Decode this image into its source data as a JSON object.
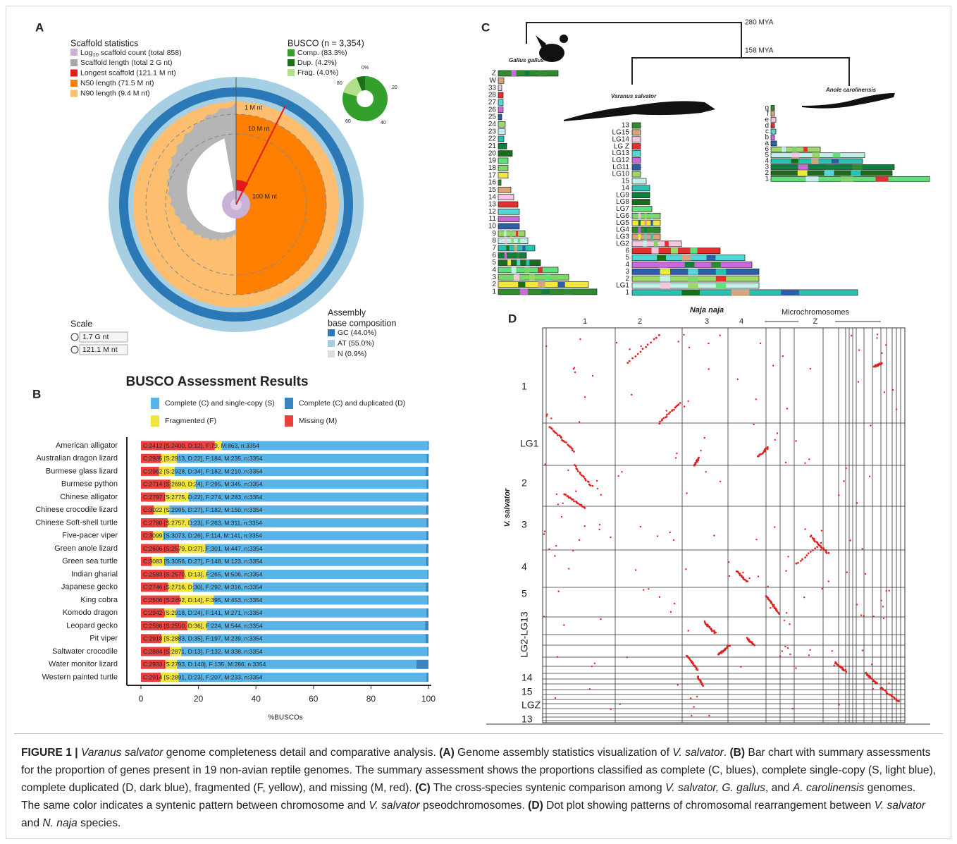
{
  "panel_labels": [
    "A",
    "B",
    "C",
    "D"
  ],
  "panel_a": {
    "scaffold_title": "Scaffold statistics",
    "log_label": [
      "Log",
      "10",
      " scaffold count (total 858)"
    ],
    "scaffold_items": [
      "Scaffold length (total 2 G nt)",
      "Longest scaffold (121.1 M nt)",
      "N50 length (71.5 M nt)",
      "N90 length (9.4 M nt)"
    ],
    "busco_title": "BUSCO (n = 3,354)",
    "busco_items": [
      "Comp. (83.3%)",
      "Dup. (4.2%)",
      "Frag. (4.0%)"
    ],
    "busco_ticks": [
      "0%",
      "20",
      "40",
      "60",
      "80"
    ],
    "ring_labels": [
      "1 M nt",
      "10 M nt",
      "100 M nt"
    ],
    "scale_title": "Scale",
    "scale_items": [
      "1.7 G nt",
      "121.1 M nt"
    ],
    "composition_title": [
      "Assembly",
      "base composition"
    ],
    "composition_items": [
      "GC (44.0%)",
      "AT (55.0%)",
      "N (0.9%)"
    ]
  },
  "chart_data": {
    "type": "stacked_barh",
    "title": "BUSCO Assessment Results",
    "x_label": "%BUSCOs",
    "categories": [
      "American alligator",
      "Australian dragon lizard",
      "Burmese glass lizard",
      "Burmese python",
      "Chinese alligator",
      "Chinese crocodile lizard",
      "Chinese Soft-shell turtle",
      "Five-pacer viper",
      "Green anole lizard",
      "Green sea turtle",
      "Indian gharial",
      "Japanese gecko",
      "King cobra",
      "Komodo dragon",
      "Leopard gecko",
      "Pit viper",
      "Saltwater crocodile",
      "Water monitor lizard",
      "Western painted turtle"
    ],
    "series": [
      {
        "name": "Missing (M)",
        "color": "#e8413f",
        "values": [
          25.7,
          7.0,
          6.3,
          10.3,
          8.4,
          4.5,
          9.3,
          4.2,
          13.3,
          3.7,
          15.1,
          9.4,
          13.5,
          8.1,
          16.2,
          7.1,
          10.1,
          8.5,
          6.9
        ]
      },
      {
        "name": "Fragmented (F)",
        "color": "#f1e43f",
        "values": [
          2.4,
          5.5,
          5.4,
          8.8,
          8.2,
          5.4,
          7.8,
          3.4,
          9.0,
          4.4,
          7.9,
          8.7,
          11.8,
          4.2,
          6.7,
          5.9,
          3.9,
          4.0,
          6.2
        ]
      },
      {
        "name": "Complete (C) and single-copy (S)",
        "color": "#58b4e6",
        "values": [
          71.6,
          86.9,
          87.3,
          80.2,
          82.7,
          89.3,
          82.2,
          91.6,
          76.9,
          91.1,
          76.6,
          81.0,
          74.3,
          87.0,
          76.0,
          86.0,
          85.6,
          83.3,
          86.2
        ]
      },
      {
        "name": "Complete (C) and duplicated (D)",
        "color": "#3a84bf",
        "values": [
          0.4,
          0.7,
          1.0,
          0.7,
          0.7,
          0.8,
          0.7,
          0.8,
          0.8,
          0.8,
          0.4,
          0.9,
          0.4,
          0.7,
          1.1,
          1.0,
          0.4,
          4.2,
          0.7
        ]
      }
    ],
    "bar_labels": [
      "C:2412 [S:2400, D:12], F:79, M:863, n:3354",
      "C:2935 [S:2913, D:22], F:184, M:235, n:3354",
      "C:2962 [S:2928, D:34], F:182, M:210, n:3354",
      "C:2714 [S:2690, D:24], F:295, M:345, n:3354",
      "C:2797 [S:2775, D:22], F:274, M:283, n:3354",
      "C:3022 [S:2995, D:27], F:182, M:150, n:3354",
      "C:2780 [S:2757, D:23], F:263, M:311, n:3354",
      "C:3099 [S:3073, D:26], F:114, M:141, n:3354",
      "C:2606 [S:2579, D:27], F:301, M:447, n:3354",
      "C:3083 [S:3056, D:27], F:148, M:123, n:3354",
      "C:2583 [S:2570, D:13], F:265, M:506, n:3354",
      "C:2746 [S:2716, D:30], F:292, M:316, n:3354",
      "C:2506 [S:2492, D:14], F:395, M:453, n:3354",
      "C:2942 [S:2918, D:24], F:141, M:271, n:3354",
      "C:2586 [S:2550, D:36], F:224, M:544, n:3354",
      "C:2918 [S:2883, D:35], F:197, M:239, n:3354",
      "C:2884 [S:2871, D:13], F:132, M:338, n:3354",
      "C:2933 [S:2793, D:140], F:135, M:286, n:3354",
      "C:2914 [S:2891, D:23], F:207, M:233, n:3354"
    ],
    "xlim": [
      0,
      100
    ],
    "xticks": [
      0,
      20,
      40,
      60,
      80,
      100
    ]
  },
  "panel_c": {
    "ages": [
      "280 MYA",
      "158 MYA"
    ],
    "species": [
      "Gallus gallus",
      "Varanus salvator",
      "Anole carolinensis"
    ],
    "gallus_labels": [
      "Z",
      "W",
      "33",
      "28",
      "27",
      "26",
      "25",
      "24",
      "23",
      "22",
      "21",
      "20",
      "19",
      "18",
      "17",
      "16",
      "15",
      "14",
      "13",
      "12",
      "11",
      "10",
      "9",
      "8",
      "7",
      "6",
      "5",
      "4",
      "3",
      "2",
      "1"
    ],
    "varanus_labels": [
      "13",
      "LG15",
      "LG14",
      "LG Z",
      "LG13",
      "LG12",
      "LG11",
      "LG10",
      "15",
      "14",
      "LG9",
      "LG8",
      "LG7",
      "LG6",
      "LG5",
      "LG4",
      "LG3",
      "LG2",
      "6",
      "5",
      "4",
      "3",
      "2",
      "LG1",
      "1"
    ],
    "anole_labels": [
      "g",
      "f",
      "e",
      "d",
      "c",
      "b",
      "a",
      "6",
      "5",
      "4",
      "3",
      "2",
      "1"
    ]
  },
  "panel_d": {
    "x_title": "Naja naja",
    "micro_label": "Microchromosomes",
    "x_labels": [
      "1",
      "2",
      "3",
      "4",
      "Z"
    ],
    "y_title": "V. salvator",
    "y_labels": [
      "1",
      "LG1",
      "2",
      "3",
      "4",
      "5",
      "LG2-LG13",
      "14",
      "15",
      "LGZ",
      "13"
    ]
  },
  "caption": [
    "FIGURE 1 | ",
    "Varanus salvator",
    " genome completeness detail and comparative analysis. ",
    "(A)",
    " Genome assembly statistics visualization of ",
    "V. salvator",
    ". ",
    "(B)",
    " Bar chart with summary assessments for the proportion of genes present in 19 non-avian reptile genomes. The summary assessment shows the proportions classified as complete (C, blues), complete single-copy (S, light blue), complete duplicated (D, dark blue), fragmented (F, yellow), and missing (M, red). ",
    "(C)",
    " The cross-species syntenic comparison among ",
    "V. salvator, G. gallus",
    ", and ",
    "A. carolinensis",
    " genomes. The same color indicates a syntenic pattern between chromosome and ",
    "V. salvator",
    " pseodchromosomes. ",
    "(D)",
    " Dot plot showing patterns of chromosomal rearrangement between ",
    "V. salvator",
    " and ",
    "N. naja",
    " species."
  ]
}
